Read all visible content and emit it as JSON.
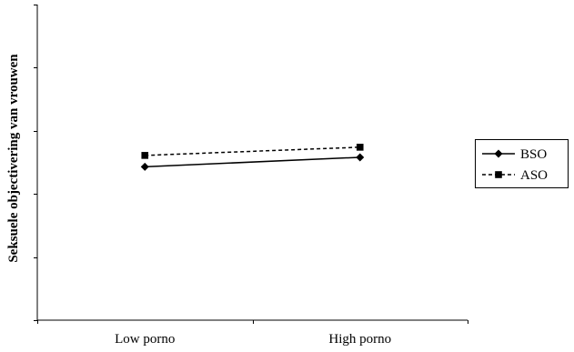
{
  "chart_data": {
    "type": "line",
    "title": "",
    "xlabel": "",
    "ylabel": "Seksuele objectivering van vrouwen",
    "categories": [
      "Low porno",
      "High porno"
    ],
    "y_tick_count": 6,
    "y_tick_labels_shown": false,
    "ylim": [
      0,
      5
    ],
    "grid": false,
    "legend": "right",
    "series": [
      {
        "name": "BSO",
        "marker": "diamond",
        "line_style": "solid",
        "color": "#000000",
        "values": [
          2.43,
          2.58
        ]
      },
      {
        "name": "ASO",
        "marker": "square",
        "line_style": "dashed",
        "color": "#000000",
        "values": [
          2.61,
          2.74
        ]
      }
    ]
  }
}
